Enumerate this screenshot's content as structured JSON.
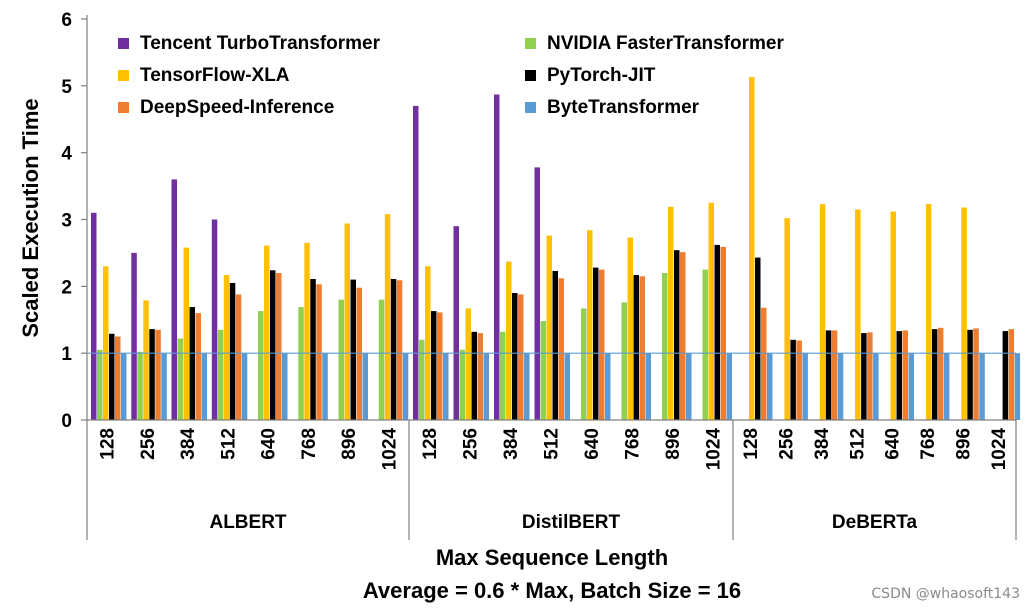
{
  "chart_data": {
    "type": "bar",
    "ylabel": "Scaled Execution Time",
    "xlabel": "Max Sequence Length",
    "subtitle": "Average = 0.6 * Max, Batch Size = 16",
    "ylim": [
      0,
      6
    ],
    "yticks": [
      0,
      1,
      2,
      3,
      4,
      5,
      6
    ],
    "reference_line": 1,
    "grid": false,
    "legend_position": "top-left",
    "groups": [
      {
        "name": "ALBERT",
        "categories": [
          "128",
          "256",
          "384",
          "512",
          "640",
          "768",
          "896",
          "1024"
        ],
        "series": [
          {
            "name": "Tencent TurboTransformer",
            "values": [
              3.1,
              2.5,
              3.6,
              3.0,
              null,
              null,
              null,
              null
            ]
          },
          {
            "name": "NVIDIA FasterTransformer",
            "values": [
              1.05,
              1.02,
              1.22,
              1.35,
              1.63,
              1.69,
              1.8,
              1.8
            ]
          },
          {
            "name": "TensorFlow-XLA",
            "values": [
              2.3,
              1.79,
              2.58,
              2.17,
              2.61,
              2.65,
              2.94,
              3.08
            ]
          },
          {
            "name": "PyTorch-JIT",
            "values": [
              1.29,
              1.36,
              1.69,
              2.05,
              2.24,
              2.11,
              2.1,
              2.11
            ]
          },
          {
            "name": "DeepSpeed-Inference",
            "values": [
              1.25,
              1.35,
              1.6,
              1.88,
              2.2,
              2.03,
              1.98,
              2.09
            ]
          },
          {
            "name": "ByteTransformer",
            "values": [
              1,
              1,
              1,
              1,
              1,
              1,
              1,
              1
            ]
          }
        ]
      },
      {
        "name": "DistilBERT",
        "categories": [
          "128",
          "256",
          "384",
          "512",
          "640",
          "768",
          "896",
          "1024"
        ],
        "series": [
          {
            "name": "Tencent TurboTransformer",
            "values": [
              4.7,
              2.9,
              4.87,
              3.78,
              null,
              null,
              null,
              null
            ]
          },
          {
            "name": "NVIDIA FasterTransformer",
            "values": [
              1.2,
              1.05,
              1.32,
              1.48,
              1.67,
              1.76,
              2.2,
              2.25
            ]
          },
          {
            "name": "TensorFlow-XLA",
            "values": [
              2.3,
              1.67,
              2.37,
              2.76,
              2.84,
              2.73,
              3.19,
              3.25
            ]
          },
          {
            "name": "PyTorch-JIT",
            "values": [
              1.63,
              1.32,
              1.9,
              2.23,
              2.28,
              2.17,
              2.54,
              2.62
            ]
          },
          {
            "name": "DeepSpeed-Inference",
            "values": [
              1.61,
              1.3,
              1.88,
              2.12,
              2.25,
              2.15,
              2.51,
              2.59
            ]
          },
          {
            "name": "ByteTransformer",
            "values": [
              1,
              1,
              1,
              1,
              1,
              1,
              1,
              1
            ]
          }
        ]
      },
      {
        "name": "DeBERTa",
        "categories": [
          "128",
          "256",
          "384",
          "512",
          "640",
          "768",
          "896",
          "1024"
        ],
        "series": [
          {
            "name": "Tencent TurboTransformer",
            "values": [
              null,
              null,
              null,
              null,
              null,
              null,
              null,
              null
            ]
          },
          {
            "name": "NVIDIA FasterTransformer",
            "values": [
              null,
              null,
              null,
              null,
              null,
              null,
              null,
              null
            ]
          },
          {
            "name": "TensorFlow-XLA",
            "values": [
              5.13,
              3.02,
              3.23,
              3.15,
              3.12,
              3.23,
              3.18,
              null
            ]
          },
          {
            "name": "PyTorch-JIT",
            "values": [
              2.43,
              1.2,
              1.34,
              1.3,
              1.33,
              1.36,
              1.35,
              1.33
            ]
          },
          {
            "name": "DeepSpeed-Inference",
            "values": [
              1.68,
              1.19,
              1.34,
              1.31,
              1.34,
              1.38,
              1.37,
              1.36
            ]
          },
          {
            "name": "ByteTransformer",
            "values": [
              1,
              1,
              1,
              1,
              1,
              1,
              1,
              1
            ]
          }
        ]
      }
    ],
    "legend": [
      {
        "name": "Tencent TurboTransformer",
        "color": "#7030a0"
      },
      {
        "name": "NVIDIA FasterTransformer",
        "color": "#92d050"
      },
      {
        "name": "TensorFlow-XLA",
        "color": "#ffc000"
      },
      {
        "name": "PyTorch-JIT",
        "color": "#000000"
      },
      {
        "name": "DeepSpeed-Inference",
        "color": "#ed7d31"
      },
      {
        "name": "ByteTransformer",
        "color": "#5b9bd5"
      }
    ]
  },
  "watermark": "CSDN @whaosoft143"
}
